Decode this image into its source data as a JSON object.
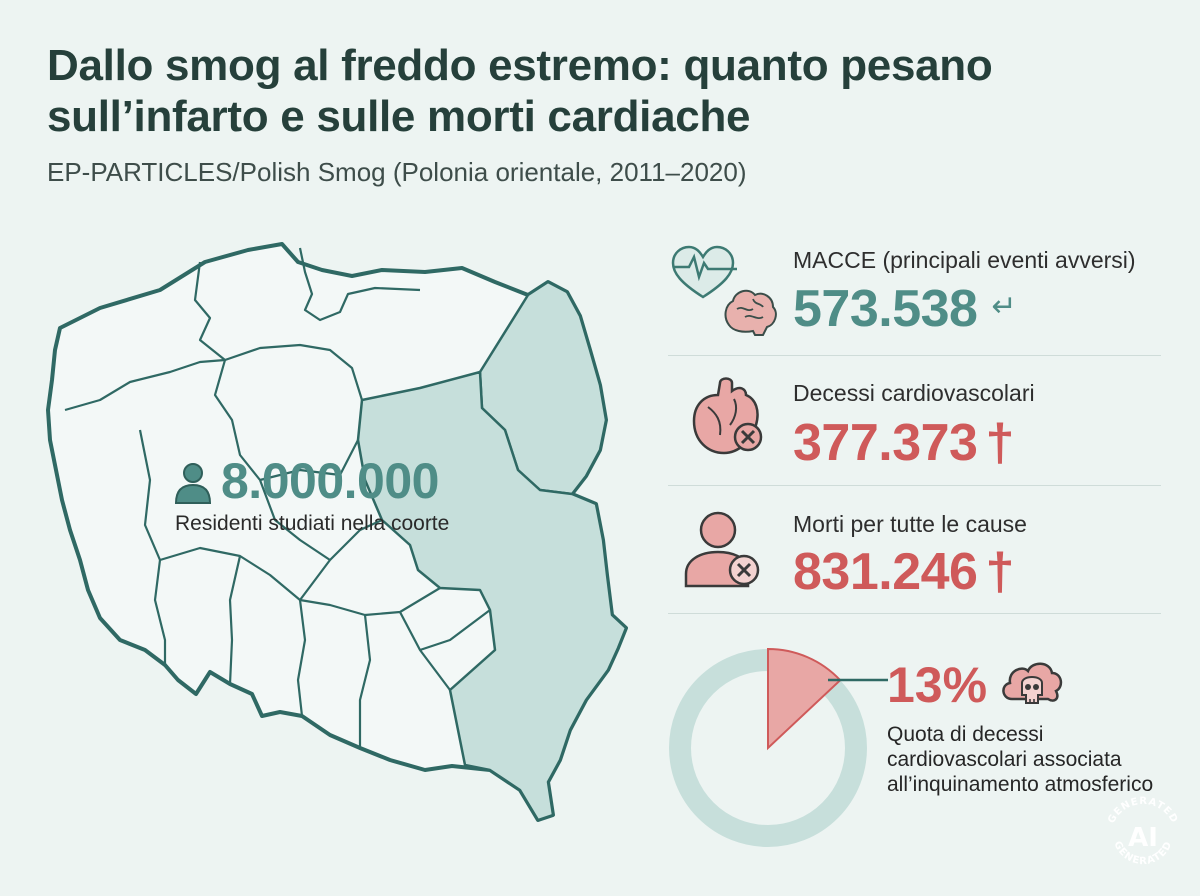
{
  "header": {
    "title_line1": "Dallo smog al freddo estremo: quanto pesano",
    "title_line2": "sull’infarto e sulle morti cardiache",
    "subtitle": "EP-PARTICLES/Polish Smog (Polonia orientale, 2011–2020)"
  },
  "map": {
    "country": "Polonia",
    "highlighted_region": "Polonia orientale",
    "colors": {
      "outline": "#2f6964",
      "highlight": "#c6dfdb",
      "land": "#f3f8f7"
    }
  },
  "residents": {
    "icon": "person-icon",
    "value": "8.000.000",
    "label": "Residenti studiati nella coorte"
  },
  "stats": [
    {
      "icon": "heart-brain-icon",
      "label": "MACCE (principali eventi avversi)",
      "value": "573.538",
      "mark": "↵",
      "color": "#4f8d87"
    },
    {
      "icon": "heart-cross-icon",
      "label": "Decessi cardiovascolari",
      "value": "377.373",
      "mark": "†",
      "color": "#cf5a5a"
    },
    {
      "icon": "person-x-icon",
      "label": "Morti per tutte le cause",
      "value": "831.246",
      "mark": "†",
      "color": "#cf5a5a"
    }
  ],
  "pollution_share": {
    "value": "13%",
    "fraction": 0.13,
    "icon": "skull-cloud-icon",
    "label": "Quota di decessi cardiovascolari associata all’inquinamento atmosferico",
    "colors": {
      "ring": "#c7dfdb",
      "slice": "#cf5a5a",
      "slice_fill": "#e8a7a5"
    }
  },
  "badge": {
    "top_text": "GENERATED",
    "center_text": "AI",
    "bottom_text": "GENERATED"
  }
}
